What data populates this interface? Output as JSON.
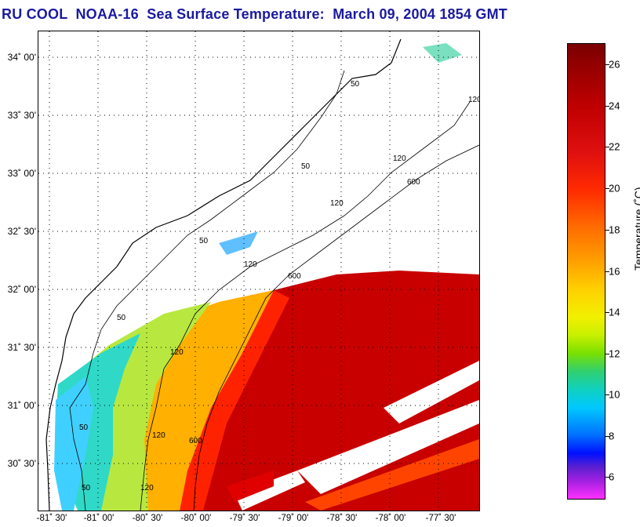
{
  "title": "RU COOL  NOAA-16  Sea Surface Temperature:  March 09, 2004 1854 GMT",
  "lat_labels": [
    "34˚ 00'",
    "33˚ 30'",
    "33˚ 00'",
    "32˚ 30'",
    "32˚ 00'",
    "31˚ 30'",
    "31˚ 00'",
    "30˚ 30'"
  ],
  "lon_labels": [
    "-81˚ 30'",
    "-81˚ 00'",
    "-80˚ 30'",
    "-80˚ 00'",
    "-79˚ 30'",
    "-79˚ 00'",
    "-78˚ 30'",
    "-78˚ 00'",
    "-77˚ 30'"
  ],
  "colorbar": {
    "title": "Temperature (˚C)",
    "ticks": [
      "26",
      "24",
      "22",
      "20",
      "18",
      "16",
      "14",
      "12",
      "10",
      "8",
      "6"
    ]
  },
  "contours": [
    "50",
    "120",
    "600"
  ]
}
